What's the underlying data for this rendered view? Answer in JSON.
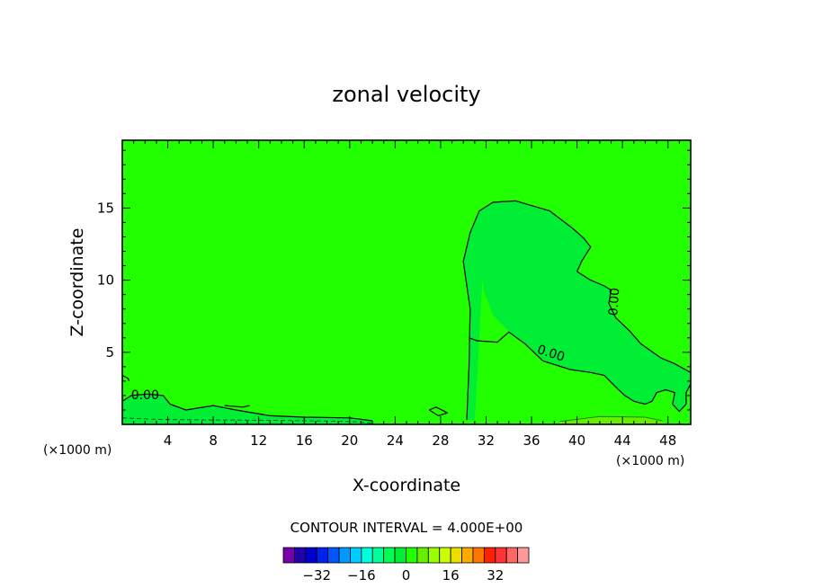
{
  "chart_data": {
    "type": "heatmap",
    "title": "zonal velocity",
    "xlabel": "X-coordinate",
    "ylabel": "Z-coordinate",
    "x_unit": "(×1000 m)",
    "y_unit": "(×1000 m)",
    "xlim": [
      0,
      50
    ],
    "ylim": [
      0,
      19.7
    ],
    "x_ticks": [
      4,
      8,
      12,
      16,
      20,
      24,
      28,
      32,
      36,
      40,
      44,
      48
    ],
    "y_ticks": [
      5,
      10,
      15
    ],
    "background_fill_color": "#22ff00",
    "contour_interval_text": "CONTOUR INTERVAL = 4.000E+00",
    "contour_level_label": "0.00",
    "regions": [
      {
        "name": "negative-region",
        "fill": "#00ee33",
        "points": [
          [
            30.3,
            0.3
          ],
          [
            30.5,
            4.0
          ],
          [
            30.6,
            8.0
          ],
          [
            30.2,
            10.2
          ],
          [
            30.0,
            11.3
          ],
          [
            30.6,
            13.3
          ],
          [
            31.4,
            14.8
          ],
          [
            32.6,
            15.4
          ],
          [
            34.6,
            15.5
          ],
          [
            37.6,
            14.8
          ],
          [
            39.6,
            13.6
          ],
          [
            40.6,
            12.9
          ],
          [
            41.2,
            12.3
          ],
          [
            40.4,
            11.3
          ],
          [
            40.0,
            10.6
          ],
          [
            41.2,
            10.0
          ],
          [
            42.4,
            9.6
          ],
          [
            43.0,
            9.3
          ],
          [
            42.8,
            8.4
          ],
          [
            43.4,
            7.4
          ],
          [
            44.6,
            6.5
          ],
          [
            45.6,
            5.6
          ],
          [
            47.4,
            4.6
          ],
          [
            48.6,
            4.2
          ],
          [
            50.0,
            3.6
          ],
          [
            50.0,
            2.8
          ],
          [
            49.6,
            2.2
          ],
          [
            49.6,
            1.4
          ],
          [
            49.0,
            0.9
          ],
          [
            48.4,
            1.4
          ],
          [
            48.6,
            2.2
          ],
          [
            47.8,
            2.4
          ],
          [
            47.0,
            2.2
          ],
          [
            46.6,
            1.6
          ],
          [
            46.0,
            1.4
          ],
          [
            45.0,
            1.6
          ],
          [
            44.2,
            2.0
          ],
          [
            43.4,
            2.6
          ],
          [
            42.4,
            3.4
          ],
          [
            41.2,
            3.6
          ],
          [
            39.4,
            3.8
          ],
          [
            37.0,
            4.4
          ],
          [
            35.4,
            5.6
          ],
          [
            34.0,
            6.4
          ],
          [
            32.6,
            7.6
          ],
          [
            31.8,
            9.2
          ],
          [
            31.7,
            10.2
          ],
          [
            31.8,
            11.0
          ],
          [
            31.6,
            9.0
          ],
          [
            31.4,
            6.0
          ],
          [
            31.2,
            3.0
          ],
          [
            31.0,
            0.3
          ]
        ]
      },
      {
        "name": "bottom-left-negative-band",
        "fill": "#00ee33",
        "points": [
          [
            0.0,
            0.0
          ],
          [
            0.0,
            1.6
          ],
          [
            0.8,
            2.0
          ],
          [
            2.2,
            2.1
          ],
          [
            3.6,
            2.0
          ],
          [
            4.2,
            1.4
          ],
          [
            5.6,
            1.0
          ],
          [
            8.0,
            1.3
          ],
          [
            10.0,
            1.0
          ],
          [
            13.0,
            0.6
          ],
          [
            16.0,
            0.5
          ],
          [
            20.0,
            0.45
          ],
          [
            22.0,
            0.25
          ],
          [
            22.0,
            0.0
          ]
        ]
      },
      {
        "name": "bottom-right-positive-band",
        "fill": "#66ee00",
        "points": [
          [
            38.5,
            0.0
          ],
          [
            38.5,
            0.2
          ],
          [
            42.0,
            0.55
          ],
          [
            46.0,
            0.5
          ],
          [
            47.5,
            0.25
          ],
          [
            47.5,
            0.0
          ]
        ]
      }
    ],
    "contour_lines": [
      {
        "level": 0,
        "points": [
          [
            30.3,
            0.3
          ],
          [
            30.5,
            4.0
          ],
          [
            30.6,
            8.0
          ],
          [
            30.2,
            10.2
          ],
          [
            30.0,
            11.3
          ],
          [
            30.6,
            13.3
          ],
          [
            31.4,
            14.8
          ],
          [
            32.6,
            15.4
          ],
          [
            34.6,
            15.5
          ],
          [
            37.6,
            14.8
          ],
          [
            39.6,
            13.6
          ],
          [
            40.6,
            12.9
          ],
          [
            41.2,
            12.3
          ],
          [
            40.4,
            11.3
          ],
          [
            40.0,
            10.6
          ],
          [
            41.2,
            10.0
          ],
          [
            42.4,
            9.6
          ],
          [
            43.0,
            9.3
          ],
          [
            42.8,
            8.4
          ],
          [
            43.4,
            7.4
          ],
          [
            44.6,
            6.5
          ],
          [
            45.6,
            5.6
          ],
          [
            47.4,
            4.6
          ],
          [
            48.6,
            4.2
          ],
          [
            50.0,
            3.6
          ]
        ]
      },
      {
        "level": 0,
        "points": [
          [
            37.0,
            4.4
          ],
          [
            39.4,
            3.8
          ],
          [
            41.2,
            3.6
          ],
          [
            42.4,
            3.4
          ],
          [
            43.4,
            2.6
          ],
          [
            44.2,
            2.0
          ],
          [
            45.0,
            1.6
          ],
          [
            46.0,
            1.4
          ],
          [
            46.6,
            1.6
          ],
          [
            47.0,
            2.2
          ],
          [
            47.8,
            2.4
          ],
          [
            48.6,
            2.2
          ],
          [
            48.4,
            1.4
          ],
          [
            49.0,
            0.9
          ],
          [
            49.6,
            1.4
          ],
          [
            49.6,
            2.2
          ],
          [
            50.0,
            2.8
          ]
        ]
      },
      {
        "level": 0,
        "points": [
          [
            30.5,
            6.0
          ],
          [
            31.2,
            5.8
          ],
          [
            33.0,
            5.7
          ],
          [
            34.0,
            6.4
          ],
          [
            35.4,
            5.6
          ],
          [
            37.0,
            4.4
          ]
        ]
      },
      {
        "level": 0,
        "points": [
          [
            0.0,
            1.6
          ],
          [
            0.8,
            2.0
          ],
          [
            2.2,
            2.1
          ],
          [
            3.6,
            2.0
          ],
          [
            4.2,
            1.4
          ],
          [
            5.6,
            1.0
          ],
          [
            8.0,
            1.3
          ],
          [
            10.0,
            1.0
          ],
          [
            13.0,
            0.6
          ],
          [
            16.0,
            0.5
          ],
          [
            20.0,
            0.45
          ],
          [
            22.0,
            0.25
          ]
        ]
      },
      {
        "level": 0,
        "points": [
          [
            27.0,
            1.0
          ],
          [
            27.8,
            0.6
          ],
          [
            28.6,
            0.8
          ],
          [
            27.6,
            1.2
          ],
          [
            27.0,
            1.0
          ]
        ]
      },
      {
        "level": 0,
        "points": [
          [
            9.0,
            1.3
          ],
          [
            10.6,
            1.2
          ],
          [
            11.2,
            1.3
          ]
        ]
      },
      {
        "level": 0,
        "points": [
          [
            0.0,
            3.4
          ],
          [
            0.5,
            3.2
          ],
          [
            0.6,
            3.0
          ]
        ]
      }
    ],
    "contour_labels": [
      {
        "x": 2.0,
        "y": 2.0,
        "angle": 0
      },
      {
        "x": 37.7,
        "y": 4.9,
        "angle": 18
      },
      {
        "x": 43.3,
        "y": 8.5,
        "angle": -86
      }
    ],
    "colorbar": {
      "colors": [
        "#7700aa",
        "#2200aa",
        "#0000cc",
        "#0022ee",
        "#0055ff",
        "#0099ff",
        "#00ccff",
        "#00ffdd",
        "#00ff99",
        "#00ff55",
        "#00ee33",
        "#22ff00",
        "#66ee00",
        "#99ff00",
        "#ccff00",
        "#eedd00",
        "#ffaa00",
        "#ff7700",
        "#ff2200",
        "#ff3333",
        "#ff6666",
        "#ff9999"
      ],
      "ticks": [
        {
          "value": -32,
          "label": "−32"
        },
        {
          "value": -16,
          "label": "−16"
        },
        {
          "value": 0,
          "label": "0"
        },
        {
          "value": 16,
          "label": "16"
        },
        {
          "value": 32,
          "label": "32"
        }
      ],
      "range": [
        -44,
        44
      ]
    }
  }
}
